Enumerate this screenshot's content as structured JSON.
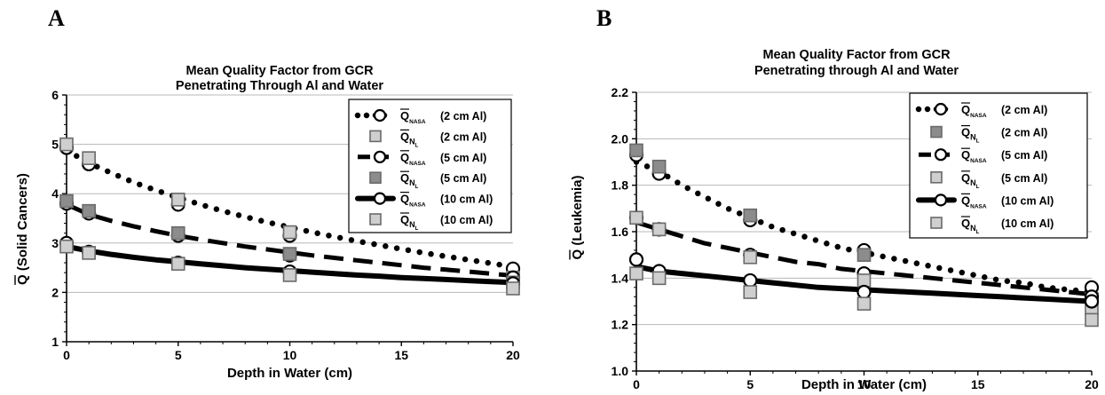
{
  "panels": [
    {
      "letter": "A"
    },
    {
      "letter": "B"
    }
  ],
  "chart_data": [
    {
      "type": "line",
      "title_lines": [
        "Mean Quality Factor from GCR",
        "Penetrating Through Al and Water"
      ],
      "xlabel": "Depth in Water (cm)",
      "ylabel_bar": "Q",
      "ylabel_rest": " (Solid Cancers)",
      "xlim": [
        0,
        20
      ],
      "ylim": [
        1,
        6
      ],
      "xticks": [
        0,
        5,
        10,
        15,
        20
      ],
      "yticks": [
        1,
        2,
        3,
        4,
        5,
        6
      ],
      "grid": true,
      "legend_placement": "top-right",
      "series": [
        {
          "label_main": "Q",
          "label_sub": "NASA",
          "label_tail": "(2 cm Al)",
          "style": "dotted-circle",
          "x": [
            0,
            1,
            5,
            10,
            20
          ],
          "y": [
            4.93,
            4.6,
            3.78,
            3.15,
            2.48
          ],
          "curve_x": [
            0,
            1,
            2,
            3,
            4,
            5,
            6,
            7,
            8,
            9,
            10,
            11,
            12,
            13,
            14,
            15,
            16,
            17,
            18,
            19,
            20
          ],
          "curve_y": [
            4.88,
            4.62,
            4.42,
            4.23,
            4.07,
            3.92,
            3.78,
            3.65,
            3.53,
            3.42,
            3.32,
            3.22,
            3.13,
            3.04,
            2.96,
            2.88,
            2.8,
            2.73,
            2.66,
            2.59,
            2.52
          ]
        },
        {
          "label_main": "Q",
          "label_sub": "N",
          "label_subsub": "L",
          "label_tail": "(2 cm Al)",
          "style": "square-light",
          "x": [
            0,
            1,
            5,
            10,
            20
          ],
          "y": [
            5.0,
            4.72,
            3.88,
            3.22,
            2.3
          ]
        },
        {
          "label_main": "Q",
          "label_sub": "NASA",
          "label_tail": "(5 cm Al)",
          "style": "dashed-circle",
          "x": [
            0,
            1,
            5,
            10,
            20
          ],
          "y": [
            3.8,
            3.6,
            3.15,
            2.75,
            2.3
          ],
          "curve_x": [
            0,
            1,
            2,
            3,
            4,
            5,
            6,
            7,
            8,
            9,
            10,
            11,
            12,
            13,
            14,
            15,
            16,
            17,
            18,
            19,
            20
          ],
          "curve_y": [
            3.78,
            3.58,
            3.45,
            3.34,
            3.24,
            3.15,
            3.07,
            3.0,
            2.93,
            2.87,
            2.81,
            2.75,
            2.7,
            2.65,
            2.6,
            2.55,
            2.5,
            2.46,
            2.42,
            2.38,
            2.34
          ]
        },
        {
          "label_main": "Q",
          "label_sub": "N",
          "label_subsub": "L",
          "label_tail": "(5 cm Al)",
          "style": "square-gray",
          "x": [
            0,
            1,
            5,
            10,
            20
          ],
          "y": [
            3.85,
            3.65,
            3.2,
            2.78,
            2.2
          ]
        },
        {
          "label_main": "Q",
          "label_sub": "NASA",
          "label_tail": "(10 cm Al)",
          "style": "solid-circle",
          "x": [
            0,
            1,
            5,
            10,
            20
          ],
          "y": [
            3.0,
            2.82,
            2.6,
            2.42,
            2.18
          ],
          "curve_x": [
            0,
            1,
            2,
            3,
            4,
            5,
            6,
            7,
            8,
            9,
            10,
            11,
            12,
            13,
            14,
            15,
            16,
            17,
            18,
            19,
            20
          ],
          "curve_y": [
            2.93,
            2.84,
            2.77,
            2.71,
            2.66,
            2.62,
            2.58,
            2.54,
            2.5,
            2.47,
            2.44,
            2.41,
            2.38,
            2.35,
            2.33,
            2.3,
            2.28,
            2.26,
            2.24,
            2.22,
            2.2
          ]
        },
        {
          "label_main": "Q",
          "label_sub": "N",
          "label_subsub": "L",
          "label_tail": "(10 cm Al)",
          "style": "square-light",
          "x": [
            0,
            1,
            5,
            10,
            20
          ],
          "y": [
            2.93,
            2.8,
            2.58,
            2.35,
            2.08
          ]
        }
      ]
    },
    {
      "type": "line",
      "title_lines": [
        "Mean Quality Factor from GCR",
        "Penetrating through Al and Water"
      ],
      "xlabel": "Depth in Water (cm)",
      "ylabel_bar": "Q",
      "ylabel_rest": " (Leukemia)",
      "xlim": [
        0,
        20
      ],
      "ylim": [
        1.0,
        2.2
      ],
      "xticks": [
        0,
        5,
        10,
        15,
        20
      ],
      "yticks": [
        1.0,
        1.2,
        1.4,
        1.6,
        1.8,
        2.0,
        2.2
      ],
      "ytick_labels": [
        "1.0",
        "1.2",
        "1.4",
        "1.6",
        "1.8",
        "2.0",
        "2.2"
      ],
      "grid": true,
      "legend_placement": "top-right",
      "series": [
        {
          "label_main": "Q",
          "label_sub": "NASA",
          "label_tail": "(2 cm Al)",
          "style": "dotted-circle",
          "x": [
            0,
            1,
            5,
            10,
            20
          ],
          "y": [
            1.93,
            1.85,
            1.65,
            1.52,
            1.36
          ],
          "curve_x": [
            0,
            1,
            2,
            3,
            4,
            5,
            6,
            7,
            8,
            9,
            10,
            11,
            12,
            13,
            14,
            15,
            16,
            17,
            18,
            19,
            20
          ],
          "curve_y": [
            1.9,
            1.86,
            1.8,
            1.75,
            1.7,
            1.66,
            1.62,
            1.59,
            1.56,
            1.53,
            1.51,
            1.49,
            1.47,
            1.45,
            1.43,
            1.41,
            1.39,
            1.38,
            1.36,
            1.35,
            1.34
          ]
        },
        {
          "label_main": "Q",
          "label_sub": "N",
          "label_subsub": "L",
          "label_tail": "(2 cm Al)",
          "style": "square-gray",
          "x": [
            0,
            1,
            5,
            10,
            20
          ],
          "y": [
            1.95,
            1.88,
            1.67,
            1.5,
            1.31
          ]
        },
        {
          "label_main": "Q",
          "label_sub": "NASA",
          "label_tail": "(5 cm Al)",
          "style": "dashed-circle",
          "x": [
            0,
            1,
            5,
            10,
            20
          ],
          "y": [
            1.66,
            1.61,
            1.5,
            1.42,
            1.32
          ],
          "curve_x": [
            0,
            1,
            2,
            3,
            4,
            5,
            6,
            7,
            8,
            9,
            10,
            11,
            12,
            13,
            14,
            15,
            16,
            17,
            18,
            19,
            20
          ],
          "curve_y": [
            1.64,
            1.61,
            1.58,
            1.55,
            1.53,
            1.51,
            1.49,
            1.47,
            1.46,
            1.44,
            1.43,
            1.42,
            1.41,
            1.4,
            1.39,
            1.38,
            1.37,
            1.36,
            1.35,
            1.34,
            1.33
          ]
        },
        {
          "label_main": "Q",
          "label_sub": "N",
          "label_subsub": "L",
          "label_tail": "(5 cm Al)",
          "style": "square-light",
          "x": [
            0,
            1,
            5,
            10,
            20
          ],
          "y": [
            1.66,
            1.61,
            1.49,
            1.39,
            1.27
          ]
        },
        {
          "label_main": "Q",
          "label_sub": "NASA",
          "label_tail": "(10 cm Al)",
          "style": "solid-circle",
          "x": [
            0,
            1,
            5,
            10,
            20
          ],
          "y": [
            1.48,
            1.43,
            1.39,
            1.34,
            1.3
          ],
          "curve_x": [
            0,
            1,
            2,
            3,
            4,
            5,
            6,
            7,
            8,
            9,
            10,
            11,
            12,
            13,
            14,
            15,
            16,
            17,
            18,
            19,
            20
          ],
          "curve_y": [
            1.45,
            1.43,
            1.42,
            1.41,
            1.4,
            1.39,
            1.38,
            1.37,
            1.36,
            1.355,
            1.35,
            1.345,
            1.34,
            1.335,
            1.33,
            1.325,
            1.32,
            1.315,
            1.31,
            1.305,
            1.3
          ]
        },
        {
          "label_main": "Q",
          "label_sub": "N",
          "label_subsub": "L",
          "label_tail": "(10 cm Al)",
          "style": "square-light",
          "x": [
            0,
            1,
            5,
            10,
            20
          ],
          "y": [
            1.42,
            1.4,
            1.34,
            1.29,
            1.22
          ]
        }
      ]
    }
  ]
}
